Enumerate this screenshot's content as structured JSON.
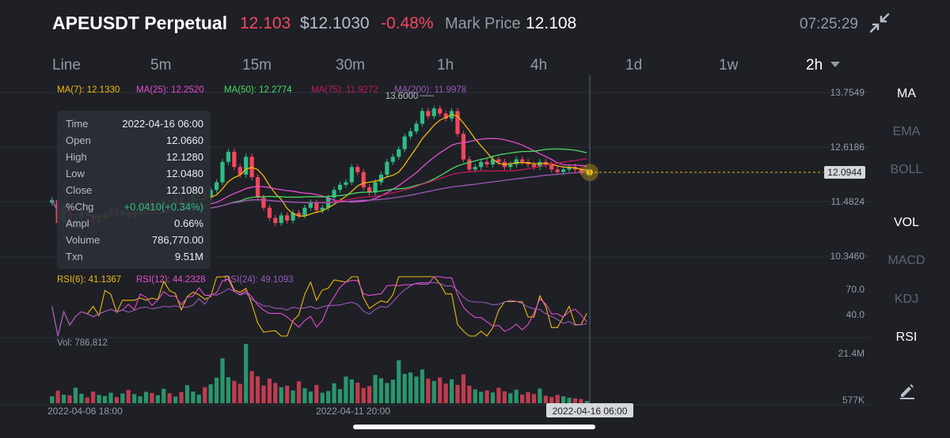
{
  "header": {
    "symbol": "APEUSDT Perpetual",
    "last_price": "12.103",
    "usd_price": "$12.1030",
    "change_pct": "-0.48%",
    "mark_price_label": "Mark Price",
    "mark_price": "12.108",
    "clock": "07:25:29",
    "collapse_icon": "collapse-arrows-icon"
  },
  "timeframes": [
    "Line",
    "5m",
    "15m",
    "30m",
    "1h",
    "4h",
    "1d",
    "1w",
    "2h"
  ],
  "timeframe_selected": "2h",
  "sidebar": [
    "MA",
    "EMA",
    "BOLL",
    "VOL",
    "MACD",
    "KDJ",
    "RSI"
  ],
  "sidebar_active": [
    "MA",
    "VOL",
    "RSI"
  ],
  "edit_icon": "pencil-edit-icon",
  "colors": {
    "up": "#2ebd85",
    "down": "#f6465d",
    "ma7": "#f0b90b",
    "ma25": "#e84cd0",
    "ma50": "#4cd964",
    "ma75": "#c2185b",
    "ma200": "#9b59b6"
  },
  "tooltip": {
    "rows": [
      {
        "k": "Time",
        "v": "2022-04-16 06:00"
      },
      {
        "k": "Open",
        "v": "12.0660"
      },
      {
        "k": "High",
        "v": "12.1280"
      },
      {
        "k": "Low",
        "v": "12.0480"
      },
      {
        "k": "Close",
        "v": "12.1080"
      },
      {
        "k": "%Chg",
        "v": "+0.0410(+0.34%)"
      },
      {
        "k": "Ampl",
        "v": "0.66%"
      },
      {
        "k": "Volume",
        "v": "786,770.00"
      },
      {
        "k": "Txn",
        "v": "9.51M"
      }
    ]
  },
  "chart_data": {
    "type": "candlestick",
    "ma_legend": [
      {
        "name": "MA(7)",
        "value": "12.1330",
        "color": "#f0b90b"
      },
      {
        "name": "MA(25)",
        "value": "12.2520",
        "color": "#e84cd0"
      },
      {
        "name": "MA(50)",
        "value": "12.2774",
        "color": "#4cd964"
      },
      {
        "name": "MA(75)",
        "value": "11.9272",
        "color": "#c2185b"
      },
      {
        "name": "MA(200)",
        "value": "11.9978",
        "color": "#9b59b6"
      }
    ],
    "price_ticks": [
      "13.7549",
      "12.6186",
      "11.4824",
      "10.3460"
    ],
    "price_range": [
      10.2,
      13.85
    ],
    "current_price_tag": "12.0944",
    "high_marker": "13.6000",
    "close": [
      11.55,
      11.1,
      11.45,
      11.0,
      11.2,
      11.35,
      11.25,
      11.1,
      11.2,
      11.3,
      11.4,
      11.25,
      11.35,
      11.2,
      11.3,
      11.45,
      11.5,
      11.38,
      11.45,
      11.55,
      11.5,
      11.6,
      11.45,
      11.5,
      11.65,
      11.7,
      11.6,
      11.75,
      11.9,
      12.3,
      12.5,
      12.2,
      12.05,
      12.4,
      12.0,
      11.6,
      11.4,
      11.2,
      11.1,
      11.25,
      11.15,
      11.3,
      11.25,
      11.4,
      11.5,
      11.35,
      11.4,
      11.6,
      11.75,
      11.85,
      11.9,
      12.2,
      12.1,
      11.8,
      11.7,
      11.9,
      12.05,
      12.3,
      12.4,
      12.55,
      12.8,
      12.9,
      13.05,
      13.3,
      13.2,
      13.35,
      13.25,
      13.15,
      13.3,
      12.85,
      12.35,
      12.15,
      12.2,
      12.3,
      12.25,
      12.35,
      12.3,
      12.2,
      12.25,
      12.35,
      12.3,
      12.25,
      12.2,
      12.3,
      12.25,
      12.15,
      12.1,
      12.15,
      12.2,
      12.15,
      12.1,
      12.108
    ],
    "rsi_legend": [
      {
        "name": "RSI(6)",
        "value": "41.1367",
        "color": "#f0b90b"
      },
      {
        "name": "RSI(12)",
        "value": "44.2328",
        "color": "#e84cd0"
      },
      {
        "name": "RSI(24)",
        "value": "49.1093",
        "color": "#9b59b6"
      }
    ],
    "rsi_ticks": [
      "70.0",
      "40.0"
    ],
    "volume_label": "Vol: 786,812",
    "volume_ticks": [
      "21.4M",
      "577K"
    ],
    "volume_range": [
      0,
      21.4
    ],
    "volume_millions": [
      2.5,
      4.5,
      3.1,
      2.8,
      5.6,
      3.4,
      2.1,
      4.2,
      3.0,
      2.6,
      3.8,
      2.2,
      3.5,
      4.8,
      3.3,
      2.5,
      4.1,
      3.7,
      2.9,
      5.2,
      3.6,
      2.4,
      4.0,
      6.5,
      4.2,
      3.1,
      5.8,
      6.8,
      9.2,
      16.2,
      9.4,
      8.1,
      7.0,
      21.4,
      11.6,
      9.7,
      6.4,
      8.9,
      7.3,
      5.8,
      6.3,
      4.6,
      7.9,
      5.4,
      4.2,
      6.6,
      3.8,
      4.4,
      7.2,
      5.1,
      9.6,
      8.6,
      7.4,
      5.5,
      6.2,
      10.2,
      9.0,
      7.3,
      8.5,
      15.5,
      10.6,
      11.1,
      9.6,
      12.2,
      8.9,
      8.0,
      9.3,
      7.1,
      8.6,
      6.6,
      10.4,
      6.3,
      5.0,
      4.1,
      4.6,
      3.9,
      5.6,
      4.3,
      3.6,
      4.9,
      3.1,
      4.0,
      3.3,
      5.3,
      2.7,
      2.3,
      3.0,
      2.5,
      2.0,
      1.8,
      1.5,
      0.8
    ],
    "x_labels": [
      "2022-04-06 18:00",
      "2022-04-11 20:00"
    ],
    "crosshair_label": "2022-04-16 06:00"
  }
}
